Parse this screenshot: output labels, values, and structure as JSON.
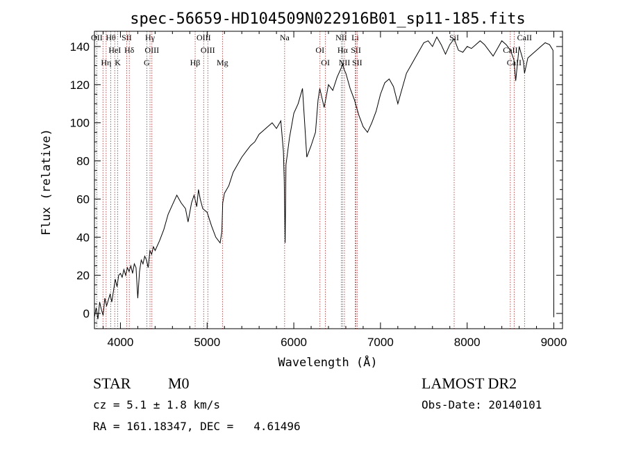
{
  "chart_data": {
    "type": "line",
    "title": "spec-56659-HD104509N022916B01_sp11-185.fits",
    "xlabel": "Wavelength (Å)",
    "ylabel": "Flux (relative)",
    "xlim": [
      3700,
      9100
    ],
    "ylim": [
      -8,
      148
    ],
    "xticks": [
      4000,
      5000,
      6000,
      7000,
      8000,
      9000
    ],
    "yticks": [
      0,
      20,
      40,
      60,
      80,
      100,
      120,
      140
    ],
    "grid": false,
    "series": [
      {
        "x": [
          3700,
          3720,
          3740,
          3760,
          3780,
          3800,
          3820,
          3840,
          3860,
          3880,
          3900,
          3920,
          3940,
          3960,
          3980,
          4000,
          4020,
          4040,
          4060,
          4080,
          4100,
          4120,
          4140,
          4160,
          4180,
          4200,
          4220,
          4240,
          4260,
          4280,
          4300,
          4320,
          4340,
          4360,
          4380,
          4400,
          4450,
          4500,
          4550,
          4600,
          4650,
          4700,
          4750,
          4780,
          4800,
          4820,
          4850,
          4880,
          4900,
          4920,
          4950,
          5000,
          5050,
          5100,
          5150,
          5170,
          5180,
          5200,
          5250,
          5300,
          5350,
          5400,
          5450,
          5500,
          5550,
          5600,
          5650,
          5700,
          5750,
          5800,
          5850,
          5880,
          5890,
          5900,
          5910,
          5950,
          6000,
          6050,
          6100,
          6150,
          6200,
          6250,
          6280,
          6300,
          6350,
          6400,
          6450,
          6500,
          6550,
          6562,
          6580,
          6600,
          6650,
          6700,
          6750,
          6800,
          6850,
          6900,
          6950,
          7000,
          7050,
          7100,
          7150,
          7200,
          7250,
          7300,
          7350,
          7400,
          7450,
          7500,
          7550,
          7600,
          7650,
          7700,
          7750,
          7800,
          7850,
          7900,
          7950,
          8000,
          8050,
          8100,
          8150,
          8200,
          8250,
          8300,
          8350,
          8400,
          8450,
          8500,
          8540,
          8560,
          8600,
          8650,
          8662,
          8700,
          8750,
          8800,
          8850,
          8900,
          8950,
          8990,
          9000
        ],
        "y": [
          -2,
          3,
          -3,
          6,
          2,
          -1,
          8,
          4,
          7,
          10,
          6,
          12,
          18,
          14,
          20,
          21,
          19,
          23,
          20,
          24,
          22,
          25,
          21,
          26,
          24,
          8,
          22,
          28,
          26,
          30,
          28,
          24,
          33,
          31,
          35,
          33,
          38,
          44,
          52,
          57,
          62,
          58,
          55,
          48,
          53,
          58,
          62,
          56,
          65,
          60,
          55,
          53,
          46,
          40,
          37,
          43,
          58,
          63,
          67,
          74,
          78,
          82,
          85,
          88,
          90,
          94,
          96,
          98,
          100,
          97,
          101,
          85,
          70,
          37,
          78,
          92,
          105,
          110,
          118,
          82,
          88,
          95,
          112,
          118,
          108,
          120,
          117,
          124,
          129,
          131,
          128,
          126,
          118,
          112,
          104,
          98,
          95,
          100,
          106,
          115,
          121,
          123,
          119,
          110,
          118,
          126,
          130,
          134,
          138,
          142,
          143,
          140,
          145,
          141,
          136,
          141,
          144,
          138,
          137,
          140,
          139,
          141,
          143,
          141,
          138,
          135,
          139,
          143,
          141,
          138,
          133,
          122,
          140,
          132,
          126,
          134,
          136,
          138,
          140,
          142,
          141,
          138,
          -2
        ]
      }
    ],
    "line_markers": [
      {
        "w": 3727,
        "t1": "OII",
        "t2": ""
      },
      {
        "w": 3798,
        "t1": "",
        "t2": ""
      },
      {
        "w": 3835,
        "t1": "Hη",
        "t2": ""
      },
      {
        "w": 3889,
        "t1": "Hθ",
        "t2": ""
      },
      {
        "w": 3934,
        "t1": "HeI",
        "t2": ""
      },
      {
        "w": 3969,
        "t1": "K",
        "t2": ""
      },
      {
        "w": 4072,
        "t1": "SII",
        "t2": ""
      },
      {
        "w": 4102,
        "t1": "Hδ",
        "t2": ""
      },
      {
        "w": 4304,
        "t1": "G",
        "t2": ""
      },
      {
        "w": 4341,
        "t1": "Hγ",
        "t2": ""
      },
      {
        "w": 4363,
        "t1": "OIII",
        "t2": ""
      },
      {
        "w": 4862,
        "t1": "Hβ",
        "t2": ""
      },
      {
        "w": 4960,
        "t1": "OIII",
        "t2": ""
      },
      {
        "w": 5008,
        "t1": "OIII",
        "t2": ""
      },
      {
        "w": 5177,
        "t1": "Mg",
        "t2": ""
      },
      {
        "w": 5894,
        "t1": "Na",
        "t2": ""
      },
      {
        "w": 6302,
        "t1": "OI",
        "t2": ""
      },
      {
        "w": 6365,
        "t1": "OI",
        "t2": ""
      },
      {
        "w": 6548,
        "t1": "NII",
        "t2": ""
      },
      {
        "w": 6563,
        "t1": "Hα",
        "t2": ""
      },
      {
        "w": 6584,
        "t1": "NII",
        "t2": ""
      },
      {
        "w": 6708,
        "t1": "Li",
        "t2": ""
      },
      {
        "w": 6717,
        "t1": "SII",
        "t2": ""
      },
      {
        "w": 6731,
        "t1": "SII",
        "t2": ""
      },
      {
        "w": 7850,
        "t1": "SiI",
        "t2": ""
      },
      {
        "w": 8498,
        "t1": "CaII",
        "t2": ""
      },
      {
        "w": 8542,
        "t1": "CaII",
        "t2": ""
      },
      {
        "w": 8662,
        "t1": "CaII",
        "t2": ""
      }
    ]
  },
  "info": {
    "class": "STAR",
    "subclass": "M0",
    "cz": "cz = 5.1 ± 1.8 km/s",
    "radec": "RA = 161.18347, DEC =   4.61496",
    "survey": "LAMOST DR2",
    "obsdate": "Obs-Date: 20140101"
  }
}
